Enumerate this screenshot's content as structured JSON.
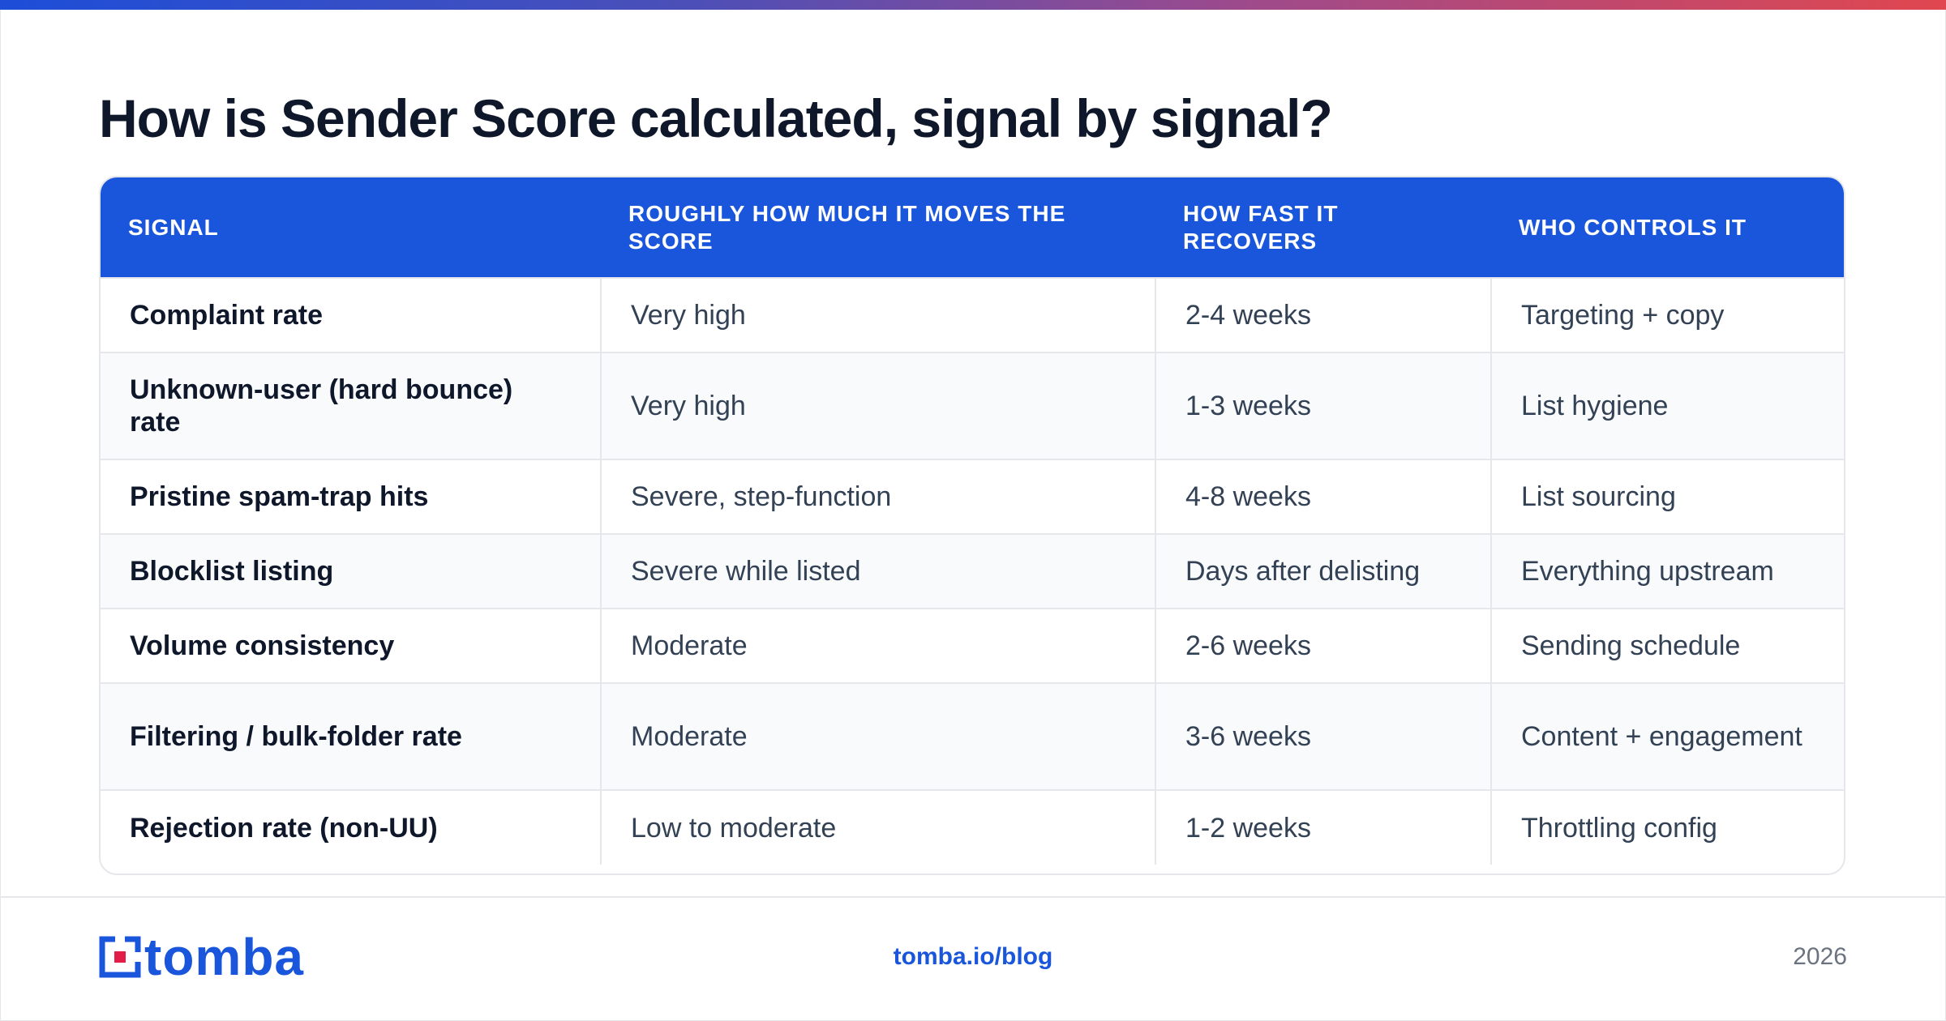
{
  "title": "How is Sender Score calculated, signal by signal?",
  "table": {
    "headers": [
      "SIGNAL",
      "ROUGHLY HOW MUCH IT MOVES THE SCORE",
      "HOW FAST IT RECOVERS",
      "WHO CONTROLS IT"
    ],
    "rows": [
      [
        "Complaint rate",
        "Very high",
        "2-4 weeks",
        "Targeting + copy"
      ],
      [
        "Unknown-user (hard bounce) rate",
        "Very high",
        "1-3 weeks",
        "List hygiene"
      ],
      [
        "Pristine spam-trap hits",
        "Severe, step-function",
        "4-8 weeks",
        "List sourcing"
      ],
      [
        "Blocklist listing",
        "Severe while listed",
        "Days after delisting",
        "Everything upstream"
      ],
      [
        "Volume consistency",
        "Moderate",
        "2-6 weeks",
        "Sending schedule"
      ],
      [
        "Filtering / bulk-folder rate",
        "Moderate",
        "3-6 weeks",
        "Content + engagement"
      ],
      [
        "Rejection rate (non-UU)",
        "Low to moderate",
        "1-2 weeks",
        "Throttling config"
      ]
    ]
  },
  "footer": {
    "logo_text": "tomba",
    "link": "tomba.io/blog",
    "year": "2026"
  },
  "colors": {
    "accent": "#1a56db",
    "logo_red": "#e11d48",
    "gradient": [
      "#1d4ed8",
      "#e0474f"
    ]
  },
  "icons": {
    "logo_mark": "tomba-logo-icon"
  }
}
